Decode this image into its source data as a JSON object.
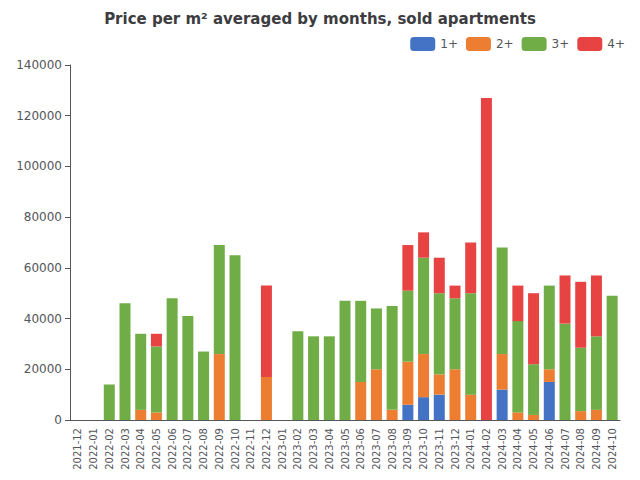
{
  "chart_data": {
    "type": "bar",
    "stacked": true,
    "title": "Price per m² averaged by months, sold apartments",
    "categories": [
      "2021-12",
      "2022-01",
      "2022-02",
      "2022-03",
      "2022-04",
      "2022-05",
      "2022-06",
      "2022-07",
      "2022-08",
      "2022-09",
      "2022-10",
      "2022-11",
      "2022-12",
      "2023-01",
      "2023-02",
      "2023-03",
      "2023-04",
      "2023-05",
      "2023-06",
      "2023-07",
      "2023-08",
      "2023-09",
      "2023-10",
      "2023-11",
      "2023-12",
      "2024-01",
      "2024-02",
      "2024-03",
      "2024-04",
      "2024-05",
      "2024-06",
      "2024-07",
      "2024-08",
      "2024-09",
      "2024-10"
    ],
    "series": [
      {
        "name": "1+",
        "color": "#4472c4",
        "values": [
          0,
          0,
          0,
          0,
          0,
          0,
          0,
          0,
          0,
          0,
          0,
          0,
          0,
          0,
          0,
          0,
          0,
          0,
          0,
          0,
          0,
          6000,
          9000,
          10000,
          0,
          0,
          0,
          12000,
          0,
          0,
          15000,
          0,
          0,
          0,
          0
        ]
      },
      {
        "name": "2+",
        "color": "#ed7d31",
        "values": [
          0,
          0,
          0,
          0,
          4000,
          3000,
          0,
          0,
          0,
          26000,
          0,
          0,
          17000,
          0,
          0,
          0,
          0,
          0,
          15000,
          20000,
          4000,
          17000,
          17000,
          8000,
          20000,
          10000,
          0,
          14000,
          3000,
          2000,
          5000,
          0,
          3500,
          4000,
          0
        ]
      },
      {
        "name": "3+",
        "color": "#70ad47",
        "values": [
          0,
          0,
          14000,
          46000,
          30000,
          26000,
          48000,
          41000,
          27000,
          43000,
          65000,
          0,
          0,
          0,
          35000,
          33000,
          33000,
          47000,
          32000,
          24000,
          41000,
          28000,
          38000,
          32000,
          28000,
          40000,
          0,
          42000,
          36000,
          20000,
          33000,
          38000,
          25000,
          29000,
          49000
        ]
      },
      {
        "name": "4+",
        "color": "#e84343",
        "values": [
          0,
          0,
          0,
          0,
          0,
          5000,
          0,
          0,
          0,
          0,
          0,
          0,
          36000,
          0,
          0,
          0,
          0,
          0,
          0,
          0,
          0,
          18000,
          10000,
          14000,
          5000,
          20000,
          127000,
          0,
          14000,
          28000,
          0,
          19000,
          26000,
          24000,
          0
        ]
      }
    ],
    "ylim": [
      0,
      140000
    ],
    "yticks": [
      0,
      20000,
      40000,
      60000,
      80000,
      100000,
      120000,
      140000
    ],
    "grid": false,
    "legend": "upper right"
  }
}
